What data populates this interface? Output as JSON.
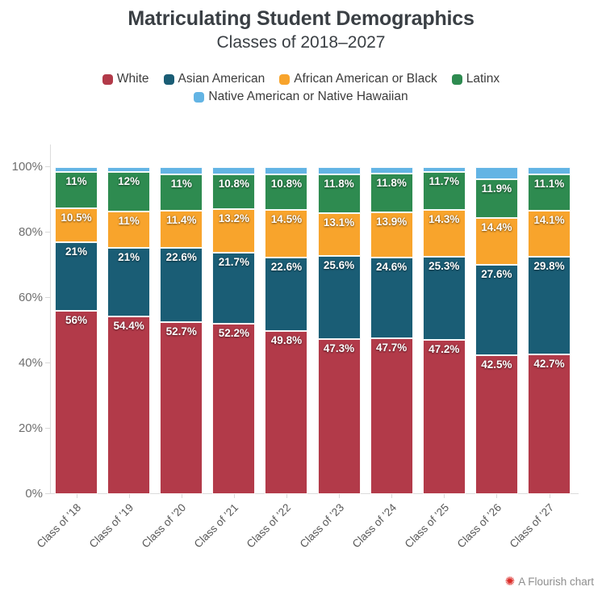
{
  "header": {
    "title": "Matriculating Student Demographics",
    "subtitle": "Classes of 2018–2027"
  },
  "legend": {
    "items": [
      {
        "label": "White",
        "color": "#b23a49"
      },
      {
        "label": "Asian American",
        "color": "#1a5d75"
      },
      {
        "label": "African American or Black",
        "color": "#f8a42c"
      },
      {
        "label": "Latinx",
        "color": "#2e8b50"
      },
      {
        "label": "Native American or Native Hawaiian",
        "color": "#63b4e4"
      }
    ]
  },
  "chart_data": {
    "type": "bar",
    "stacked": true,
    "unit": "%",
    "title": "Matriculating Student Demographics",
    "subtitle": "Classes of 2018–2027",
    "categories": [
      "Class of ’18",
      "Class of ’19",
      "Class of ’20",
      "Class of ’21",
      "Class of ’22",
      "Class of ’23",
      "Class of ’24",
      "Class of ’25",
      "Class of ’26",
      "Class of ’27"
    ],
    "series": [
      {
        "name": "White",
        "color": "#b23a49",
        "values": [
          56,
          54.4,
          52.7,
          52.2,
          49.8,
          47.3,
          47.7,
          47.2,
          42.5,
          42.7
        ],
        "labels": [
          "56%",
          "54.4%",
          "52.7%",
          "52.2%",
          "49.8%",
          "47.3%",
          "47.7%",
          "47.2%",
          "42.5%",
          "42.7%"
        ]
      },
      {
        "name": "Asian American",
        "color": "#1a5d75",
        "values": [
          21,
          21,
          22.6,
          21.7,
          22.6,
          25.6,
          24.6,
          25.3,
          27.6,
          29.8
        ],
        "labels": [
          "21%",
          "21%",
          "22.6%",
          "21.7%",
          "22.6%",
          "25.6%",
          "24.6%",
          "25.3%",
          "27.6%",
          "29.8%"
        ]
      },
      {
        "name": "African American or Black",
        "color": "#f8a42c",
        "values": [
          10.5,
          11,
          11.4,
          13.2,
          14.5,
          13.1,
          13.9,
          14.3,
          14.4,
          14.1
        ],
        "labels": [
          "10.5%",
          "11%",
          "11.4%",
          "13.2%",
          "14.5%",
          "13.1%",
          "13.9%",
          "14.3%",
          "14.4%",
          "14.1%"
        ]
      },
      {
        "name": "Latinx",
        "color": "#2e8b50",
        "values": [
          11,
          12,
          11,
          10.8,
          10.8,
          11.8,
          11.8,
          11.7,
          11.9,
          11.1
        ],
        "labels": [
          "11%",
          "12%",
          "11%",
          "10.8%",
          "10.8%",
          "11.8%",
          "11.8%",
          "11.7%",
          "11.9%",
          "11.1%"
        ]
      },
      {
        "name": "Native American or Native Hawaiian",
        "color": "#63b4e4",
        "values": [
          1.5,
          1.6,
          2.3,
          2.1,
          2.3,
          2.2,
          2.0,
          1.5,
          3.6,
          2.3
        ],
        "labels": null
      }
    ],
    "ylim": [
      0,
      100
    ],
    "yticks": [
      "0%",
      "20%",
      "40%",
      "60%",
      "80%",
      "100%"
    ],
    "grid": false,
    "legend_position": "top"
  },
  "footer": {
    "icon": "✺",
    "icon_color": "#db2b27",
    "attribution": "A Flourish chart"
  }
}
